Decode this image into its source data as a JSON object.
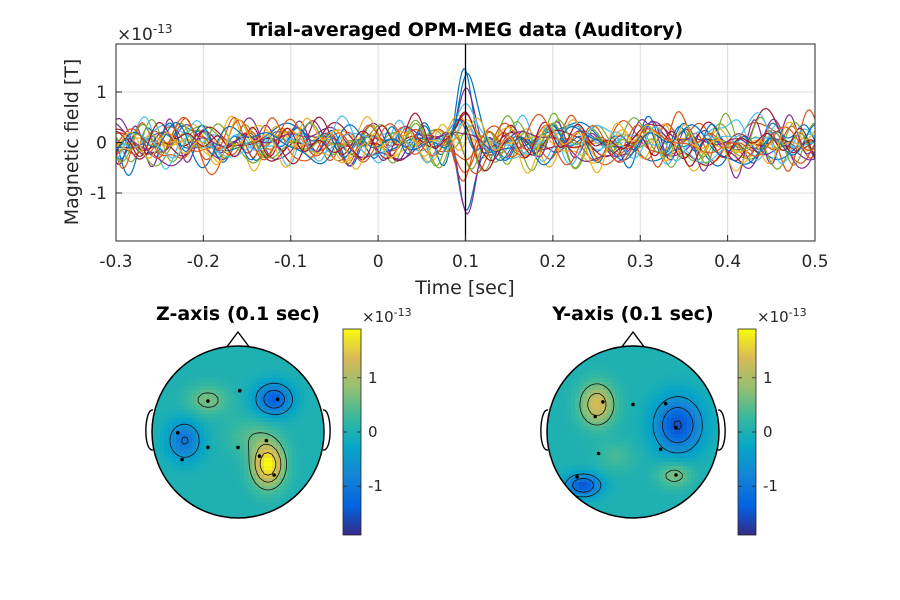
{
  "chart_data": [
    {
      "type": "line",
      "title": "Trial-averaged OPM-MEG data (Auditory)",
      "xlabel": "Time [sec]",
      "ylabel": "Magnetic field [T]",
      "exponent_label": "×10",
      "exponent_power": "-13",
      "xlim": [
        -0.3,
        0.5
      ],
      "ylim": [
        -1.95,
        1.95
      ],
      "xticks": [
        -0.3,
        -0.2,
        -0.1,
        0,
        0.1,
        0.2,
        0.3,
        0.4,
        0.5
      ],
      "xtick_labels": [
        "-0.3",
        "-0.2",
        "-0.1",
        "0",
        "0.1",
        "0.2",
        "0.3",
        "0.4",
        "0.5"
      ],
      "yticks": [
        -1,
        0,
        1
      ],
      "ytick_labels": [
        "-1",
        "0",
        "1"
      ],
      "grid": true,
      "vline_x": 0.1,
      "series_count": 24,
      "colors": [
        "#0072BD",
        "#D95319",
        "#EDB120",
        "#7E2F8E",
        "#77AC30",
        "#4DBEEE",
        "#A2142F"
      ],
      "peak_time": 0.1,
      "approx_amplitude_range": [
        -1.95,
        1.95
      ]
    },
    {
      "type": "heatmap",
      "subtype": "topoplot",
      "title": "Z-axis (0.1 sec)",
      "colorbar": {
        "exponent_label": "×10",
        "exponent_power": "-13",
        "ticks": [
          1,
          0,
          -1
        ],
        "tick_labels": [
          "1",
          "0",
          "-1"
        ],
        "range": [
          -1.9,
          1.9
        ],
        "colormap": "parula"
      },
      "sources": [
        {
          "x": -0.35,
          "y": 0.37,
          "amp": 0.65,
          "sx": 0.17,
          "sy": 0.12
        },
        {
          "x": 0.42,
          "y": 0.38,
          "amp": -1.4,
          "sx": 0.15,
          "sy": 0.13
        },
        {
          "x": -0.62,
          "y": -0.1,
          "amp": -1.05,
          "sx": 0.14,
          "sy": 0.16
        },
        {
          "x": 0.35,
          "y": -0.38,
          "amp": 1.9,
          "sx": 0.13,
          "sy": 0.18
        },
        {
          "x": 0.15,
          "y": -0.05,
          "amp": 0.4,
          "sx": 0.2,
          "sy": 0.15
        }
      ],
      "sensors": [
        {
          "x": -0.35,
          "y": 0.36
        },
        {
          "x": 0.02,
          "y": 0.48
        },
        {
          "x": 0.46,
          "y": 0.38
        },
        {
          "x": -0.7,
          "y": -0.01
        },
        {
          "x": -0.35,
          "y": -0.18
        },
        {
          "x": -0.65,
          "y": -0.32
        },
        {
          "x": 0.0,
          "y": -0.18
        },
        {
          "x": 0.33,
          "y": -0.1
        },
        {
          "x": 0.25,
          "y": -0.28
        },
        {
          "x": 0.42,
          "y": -0.5
        }
      ]
    },
    {
      "type": "heatmap",
      "subtype": "topoplot",
      "title": "Y-axis (0.1 sec)",
      "colorbar": {
        "exponent_label": "×10",
        "exponent_power": "-13",
        "ticks": [
          1,
          0,
          -1
        ],
        "tick_labels": [
          "1",
          "0",
          "-1"
        ],
        "range": [
          -1.9,
          1.9
        ],
        "colormap": "parula"
      },
      "sources": [
        {
          "x": -0.42,
          "y": 0.32,
          "amp": 1.35,
          "sx": 0.14,
          "sy": 0.17
        },
        {
          "x": 0.52,
          "y": 0.08,
          "amp": -1.55,
          "sx": 0.19,
          "sy": 0.22
        },
        {
          "x": -0.58,
          "y": -0.62,
          "amp": -1.5,
          "sx": 0.14,
          "sy": 0.09
        },
        {
          "x": 0.48,
          "y": -0.5,
          "amp": 0.7,
          "sx": 0.14,
          "sy": 0.1
        },
        {
          "x": -0.2,
          "y": -0.28,
          "amp": 0.35,
          "sx": 0.15,
          "sy": 0.12
        }
      ],
      "sensors": [
        {
          "x": -0.35,
          "y": 0.35
        },
        {
          "x": -0.44,
          "y": 0.18
        },
        {
          "x": 0.0,
          "y": 0.32
        },
        {
          "x": 0.38,
          "y": 0.33
        },
        {
          "x": 0.5,
          "y": 0.05
        },
        {
          "x": 0.32,
          "y": -0.2
        },
        {
          "x": -0.4,
          "y": -0.25
        },
        {
          "x": -0.65,
          "y": -0.52
        },
        {
          "x": 0.5,
          "y": -0.5
        }
      ]
    }
  ]
}
